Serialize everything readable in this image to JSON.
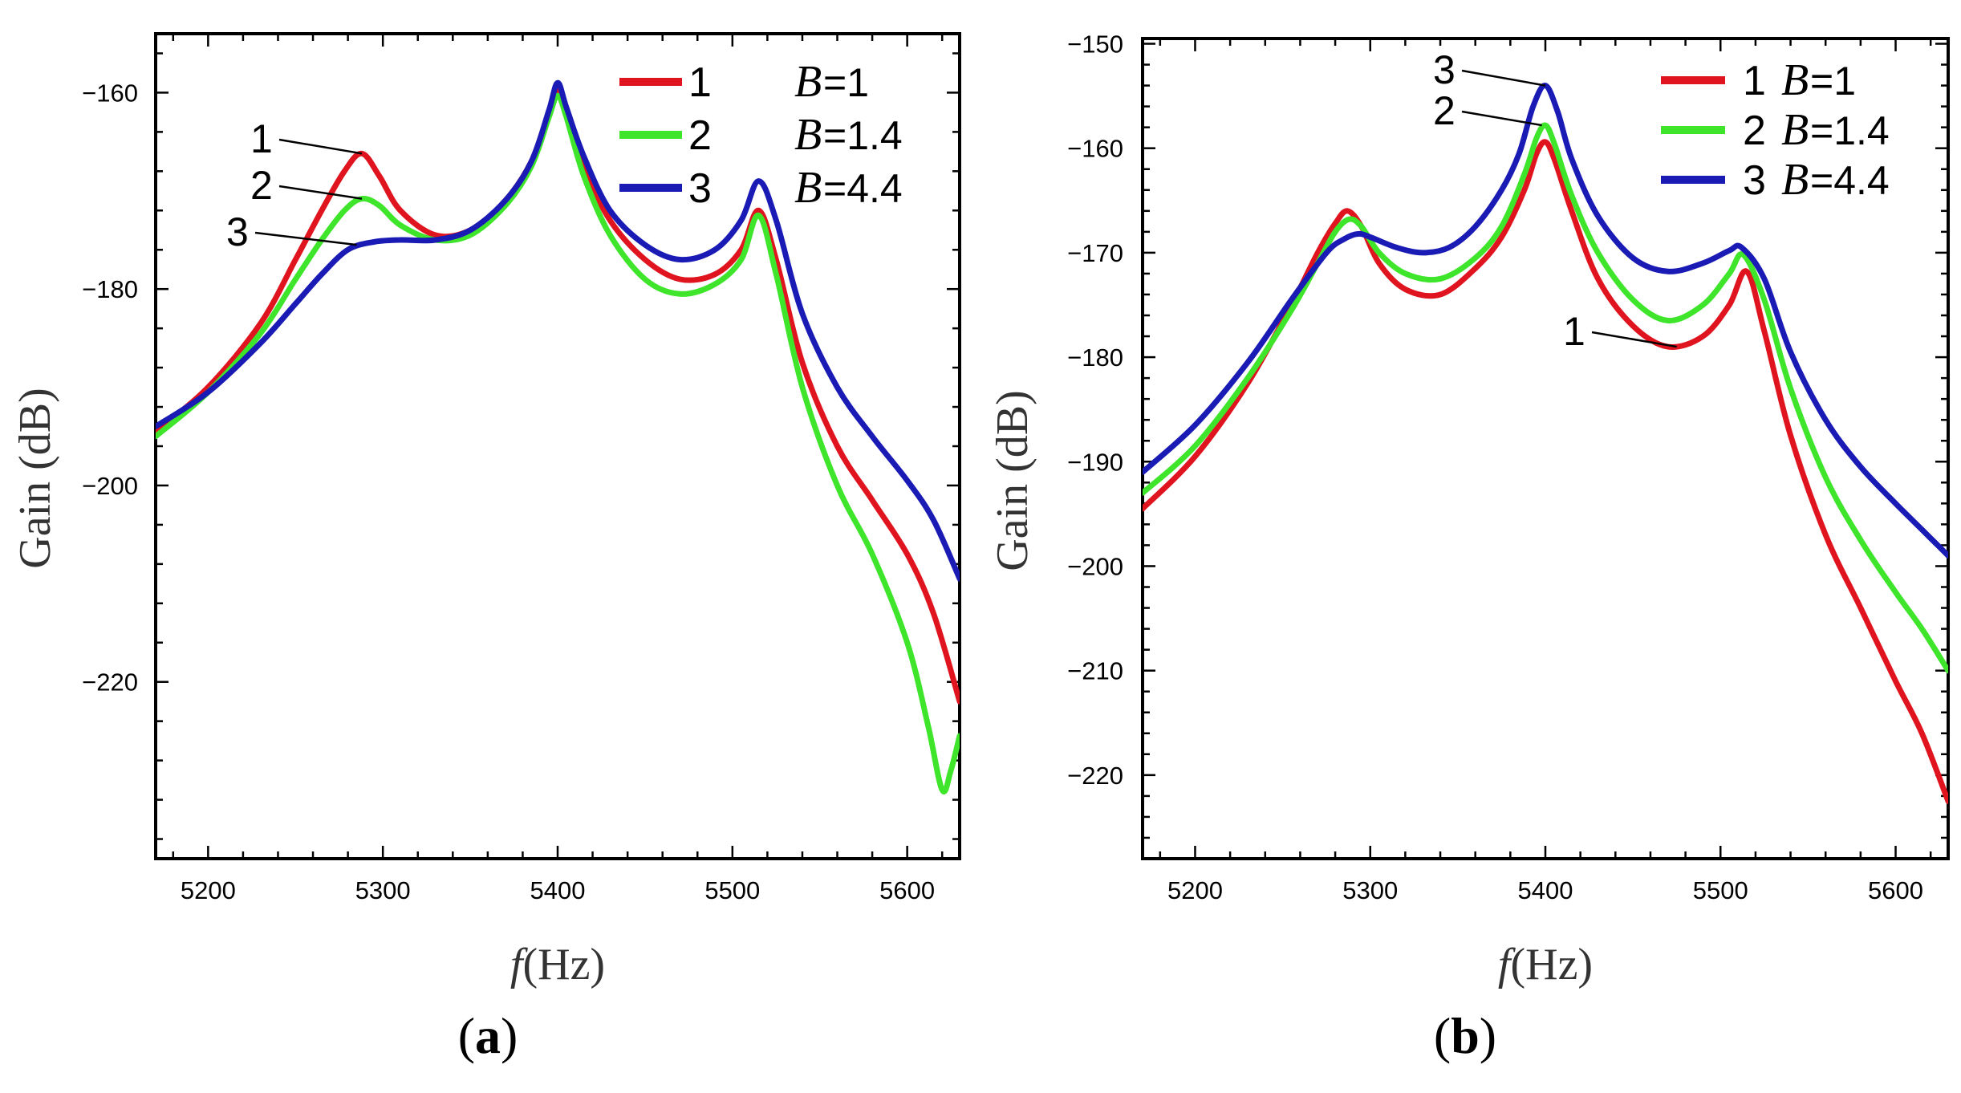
{
  "chart_data": [
    {
      "type": "line",
      "panel": "a",
      "panel_label": "a",
      "xlabel_italic": "f",
      "xlabel_unit": "(Hz)",
      "ylabel": "Gain",
      "ylabel_unit": "(dB)",
      "xlim": [
        5170,
        5630
      ],
      "ylim": [
        -238,
        -154
      ],
      "xticks": [
        5200,
        5300,
        5400,
        5500,
        5600
      ],
      "yticks": [
        -160,
        -180,
        -200,
        -220
      ],
      "ytick_labels": [
        "−160",
        "−180",
        "−200",
        "−220"
      ],
      "legend": [
        {
          "name": "1",
          "b_symbol": "B",
          "b_value": "=1",
          "color": "#e0141e"
        },
        {
          "name": "2",
          "b_symbol": "B",
          "b_value": "=1.4",
          "color": "#3ee52b"
        },
        {
          "name": "3",
          "b_symbol": "B",
          "b_value": "=4.4",
          "color": "#1a1bb5"
        }
      ],
      "annotations": [
        {
          "text": "1",
          "series": "1",
          "x": 5288,
          "y": -166.2
        },
        {
          "text": "2",
          "series": "2",
          "x": 5288,
          "y": -170.8
        },
        {
          "text": "3",
          "series": "3",
          "x": 5285,
          "y": -175.5
        }
      ],
      "series": [
        {
          "name": "1",
          "color": "#e0141e",
          "x": [
            5170,
            5200,
            5230,
            5250,
            5265,
            5278,
            5288,
            5298,
            5310,
            5330,
            5350,
            5370,
            5385,
            5395,
            5400,
            5405,
            5415,
            5430,
            5450,
            5470,
            5490,
            5505,
            5515,
            5525,
            5540,
            5560,
            5580,
            5600,
            5615,
            5630
          ],
          "y": [
            -194.5,
            -190.0,
            -183.5,
            -177.0,
            -172.0,
            -168.0,
            -166.2,
            -168.5,
            -172.0,
            -174.5,
            -174.0,
            -171.0,
            -167.0,
            -162.0,
            -159.8,
            -162.0,
            -167.5,
            -173.0,
            -177.0,
            -179.0,
            -178.5,
            -176.0,
            -172.0,
            -177.0,
            -187.5,
            -196.0,
            -201.5,
            -207.0,
            -213.0,
            -222.0
          ]
        },
        {
          "name": "2",
          "color": "#3ee52b",
          "x": [
            5170,
            5200,
            5230,
            5250,
            5265,
            5278,
            5288,
            5298,
            5310,
            5330,
            5350,
            5370,
            5385,
            5395,
            5400,
            5405,
            5415,
            5430,
            5450,
            5470,
            5490,
            5505,
            5515,
            5525,
            5540,
            5560,
            5580,
            5600,
            5612,
            5620,
            5625,
            5630
          ],
          "y": [
            -195.0,
            -190.5,
            -184.5,
            -179.0,
            -175.0,
            -172.0,
            -170.8,
            -171.5,
            -173.5,
            -175.0,
            -174.5,
            -171.5,
            -167.5,
            -162.5,
            -160.3,
            -162.5,
            -168.5,
            -174.5,
            -179.0,
            -180.5,
            -179.5,
            -177.0,
            -172.5,
            -178.5,
            -190.0,
            -200.0,
            -207.0,
            -216.0,
            -224.5,
            -231.0,
            -229.0,
            -225.5
          ]
        },
        {
          "name": "3",
          "color": "#1a1bb5",
          "x": [
            5170,
            5200,
            5230,
            5250,
            5265,
            5280,
            5295,
            5310,
            5330,
            5350,
            5370,
            5385,
            5395,
            5400,
            5405,
            5415,
            5430,
            5450,
            5470,
            5490,
            5505,
            5515,
            5525,
            5540,
            5560,
            5580,
            5600,
            5615,
            5630
          ],
          "y": [
            -194.0,
            -190.5,
            -185.5,
            -181.5,
            -178.5,
            -176.0,
            -175.2,
            -175.0,
            -175.0,
            -174.0,
            -171.0,
            -167.0,
            -161.8,
            -159.0,
            -161.5,
            -166.5,
            -172.0,
            -175.5,
            -177.0,
            -176.0,
            -173.0,
            -169.0,
            -173.0,
            -182.5,
            -190.0,
            -195.0,
            -199.5,
            -203.5,
            -209.5
          ]
        }
      ]
    },
    {
      "type": "line",
      "panel": "b",
      "panel_label": "b",
      "xlabel_italic": "f",
      "xlabel_unit": "(Hz)",
      "ylabel": "Gain",
      "ylabel_unit": "(dB)",
      "xlim": [
        5170,
        5630
      ],
      "ylim": [
        -228,
        -149.5
      ],
      "xticks": [
        5200,
        5300,
        5400,
        5500,
        5600
      ],
      "yticks": [
        -150,
        -160,
        -170,
        -180,
        -190,
        -200,
        -210,
        -220
      ],
      "ytick_labels": [
        "−150",
        "−160",
        "−170",
        "−180",
        "−190",
        "−200",
        "−210",
        "−220"
      ],
      "legend": [
        {
          "name": "1",
          "b_symbol": "B",
          "b_value": "=1",
          "color": "#e0141e"
        },
        {
          "name": "2",
          "b_symbol": "B",
          "b_value": "=1.4",
          "color": "#3ee52b"
        },
        {
          "name": "3",
          "b_symbol": "B",
          "b_value": "=4.4",
          "color": "#1a1bb5"
        }
      ],
      "annotations": [
        {
          "text": "3",
          "series": "3",
          "x": 5400,
          "y": -154.0
        },
        {
          "text": "2",
          "series": "2",
          "x": 5398,
          "y": -157.8
        },
        {
          "text": "1",
          "series": "1",
          "x": 5475,
          "y": -179.0
        }
      ],
      "series": [
        {
          "name": "1",
          "color": "#e0141e",
          "x": [
            5170,
            5200,
            5230,
            5255,
            5270,
            5280,
            5287,
            5295,
            5305,
            5320,
            5340,
            5360,
            5375,
            5388,
            5395,
            5400,
            5405,
            5415,
            5430,
            5450,
            5470,
            5490,
            5505,
            5515,
            5525,
            5540,
            5560,
            5580,
            5600,
            5615,
            5630
          ],
          "y": [
            -194.5,
            -189.5,
            -182.5,
            -175.0,
            -170.0,
            -167.2,
            -166.0,
            -167.5,
            -171.0,
            -173.5,
            -174.0,
            -171.5,
            -168.5,
            -164.0,
            -160.5,
            -159.4,
            -161.0,
            -166.0,
            -172.5,
            -177.0,
            -179.0,
            -178.0,
            -175.0,
            -171.8,
            -177.5,
            -187.5,
            -197.0,
            -204.0,
            -211.0,
            -216.0,
            -222.5
          ]
        },
        {
          "name": "2",
          "color": "#3ee52b",
          "x": [
            5170,
            5200,
            5230,
            5255,
            5270,
            5280,
            5288,
            5295,
            5305,
            5320,
            5340,
            5360,
            5375,
            5388,
            5395,
            5400,
            5405,
            5415,
            5430,
            5450,
            5470,
            5490,
            5505,
            5513,
            5525,
            5540,
            5560,
            5580,
            5600,
            5615,
            5630
          ],
          "y": [
            -193.0,
            -188.5,
            -182.0,
            -175.5,
            -171.0,
            -168.0,
            -166.8,
            -167.5,
            -170.0,
            -172.0,
            -172.5,
            -170.5,
            -167.5,
            -162.5,
            -159.0,
            -157.8,
            -159.5,
            -164.5,
            -170.0,
            -174.5,
            -176.5,
            -175.0,
            -172.0,
            -170.2,
            -174.5,
            -183.0,
            -191.5,
            -197.5,
            -202.5,
            -206.0,
            -210.0
          ]
        },
        {
          "name": "3",
          "color": "#1a1bb5",
          "x": [
            5170,
            5200,
            5230,
            5255,
            5275,
            5285,
            5293,
            5300,
            5315,
            5330,
            5345,
            5360,
            5375,
            5385,
            5393,
            5400,
            5407,
            5415,
            5430,
            5450,
            5470,
            5490,
            5505,
            5512,
            5525,
            5540,
            5560,
            5580,
            5600,
            5615,
            5630
          ],
          "y": [
            -191.0,
            -186.5,
            -180.5,
            -174.5,
            -170.0,
            -168.7,
            -168.2,
            -168.5,
            -169.5,
            -170.0,
            -169.5,
            -167.5,
            -164.0,
            -160.5,
            -156.0,
            -154.0,
            -156.5,
            -161.0,
            -166.5,
            -170.5,
            -171.8,
            -171.0,
            -169.8,
            -169.5,
            -172.5,
            -179.5,
            -186.0,
            -190.5,
            -194.0,
            -196.5,
            -199.0
          ]
        }
      ]
    }
  ]
}
